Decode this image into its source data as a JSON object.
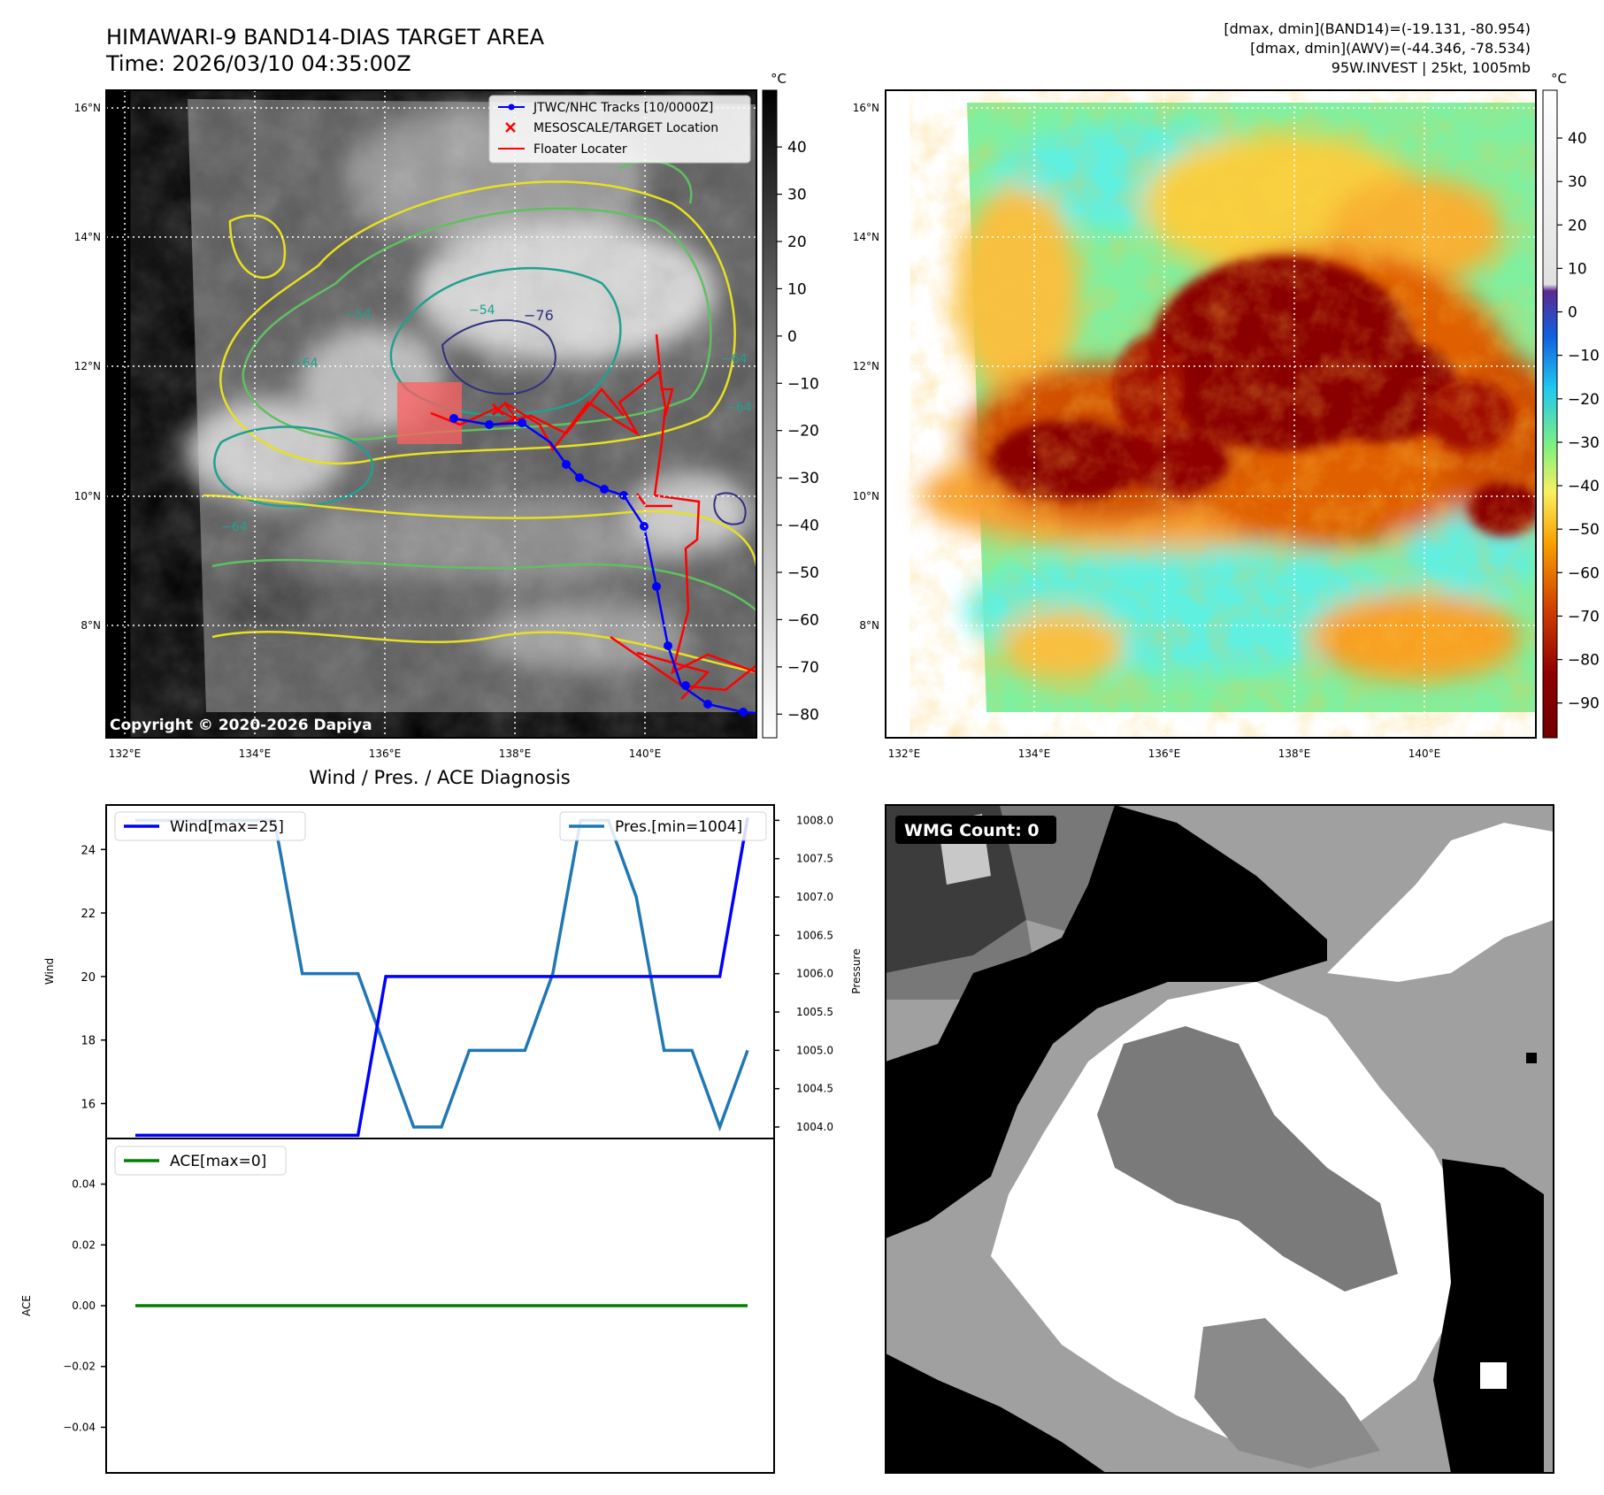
{
  "header": {
    "title_line1": "HIMAWARI-9 BAND14-DIAS TARGET AREA",
    "title_line2": "Time: 2026/03/10 04:35:00Z",
    "dmax_band14": "[dmax, dmin](BAND14)=(-19.131, -80.954)",
    "dmax_awv": "[dmax, dmin](AWV)=(-44.346, -78.534)",
    "storm_info": "95W.INVEST | 25kt, 1005mb"
  },
  "copyright": "Copyright © 2020-2026 Dapiya",
  "map_axes": {
    "lon_ticks": [
      "132°E",
      "134°E",
      "136°E",
      "138°E",
      "140°E"
    ],
    "lat_ticks": [
      "16°N",
      "14°N",
      "12°N",
      "10°N",
      "8°N"
    ]
  },
  "legend_ir": {
    "items": [
      "JTWC/NHC Tracks [10/0000Z]",
      "MESOSCALE/TARGET Location",
      "Floater Locater"
    ],
    "colors": {
      "track": "#0000ff",
      "target": "#ff0000",
      "floater": "#ff0000"
    }
  },
  "colorbar_gray": {
    "unit": "°C",
    "ticks": [
      "40",
      "30",
      "20",
      "10",
      "0",
      "−10",
      "−20",
      "−30",
      "−40",
      "−50",
      "−60",
      "−70",
      "−80"
    ]
  },
  "colorbar_color": {
    "unit": "°C",
    "ticks": [
      "40",
      "30",
      "20",
      "10",
      "0",
      "−10",
      "−20",
      "−30",
      "−40",
      "−50",
      "−60",
      "−70",
      "−80",
      "−90"
    ]
  },
  "contour_labels": [
    "−76",
    "−64",
    "−54",
    "−64",
    "−54",
    "−64",
    "−64"
  ],
  "chart_data": [
    {
      "type": "line",
      "title": "Wind / Pres. / ACE Diagnosis",
      "ylabel": "Wind",
      "y2label": "Pressure",
      "ylim": [
        14.9,
        25.4
      ],
      "y2lim": [
        1003.85,
        1008.2
      ],
      "yticks": [
        "16",
        "18",
        "20",
        "22",
        "24"
      ],
      "y2ticks": [
        "1004.0",
        "1004.5",
        "1005.0",
        "1005.5",
        "1006.0",
        "1006.5",
        "1007.0",
        "1007.5",
        "1008.0"
      ],
      "series": [
        {
          "name": "Wind[max=25]",
          "axis": "left",
          "color": "#0000ff",
          "values": [
            15,
            15,
            15,
            15,
            15,
            15,
            15,
            15,
            15,
            20,
            20,
            20,
            20,
            20,
            20,
            20,
            20,
            20,
            20,
            20,
            20,
            20,
            25
          ]
        },
        {
          "name": "Pres.[min=1004]",
          "axis": "right",
          "color": "#1f77b4",
          "values": [
            1008,
            1008,
            1008,
            1008,
            1008,
            1008,
            1006,
            1006,
            1006,
            1005,
            1004,
            1004,
            1005,
            1005,
            1005,
            1006,
            1008,
            1008,
            1007,
            1005,
            1005,
            1004,
            1005
          ]
        }
      ]
    },
    {
      "type": "line",
      "ylabel": "ACE",
      "ylim": [
        -0.055,
        0.055
      ],
      "yticks": [
        "0.04",
        "0.02",
        "0.00",
        "−0.02",
        "−0.04"
      ],
      "series": [
        {
          "name": "ACE[max=0]",
          "color": "#008000",
          "values": [
            0,
            0,
            0,
            0,
            0,
            0,
            0,
            0,
            0,
            0,
            0,
            0,
            0,
            0,
            0,
            0,
            0,
            0,
            0,
            0,
            0,
            0,
            0
          ]
        }
      ]
    }
  ],
  "wmg": {
    "label": "WMG Count: 0"
  }
}
